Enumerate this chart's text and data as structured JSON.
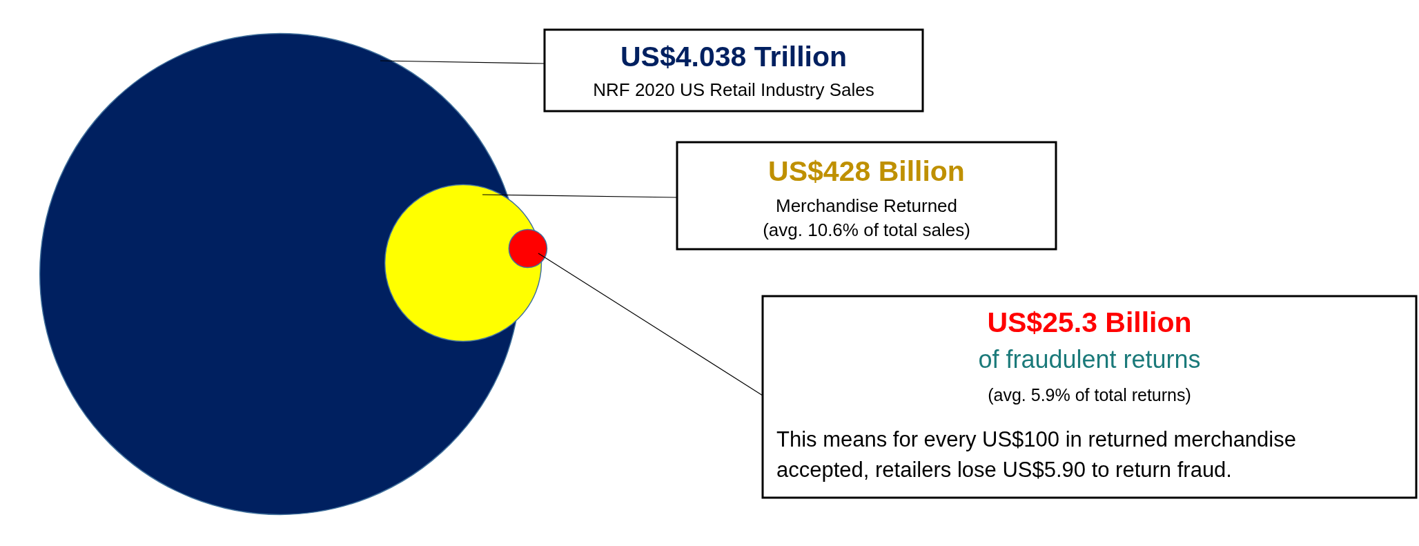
{
  "chart_data": {
    "type": "other",
    "categories": [
      null,
      null,
      null
    ],
    "values": [
      4038,
      428,
      25.3
    ],
    "value_labels": [
      "US$4.038 Trillion",
      "US$428 Billion",
      "US$25.3 Billion"
    ],
    "colors": [
      "#002060",
      "#ffff00",
      "#ff0000"
    ],
    "annotations": [
      "NRF 2020 US Retail Industry Sales",
      "Merchandise Returned",
      "(avg. 10.6% of total sales)",
      "of fraudulent returns",
      "(avg. 5.9% of total returns)",
      "This means for every US$100 in returned merchandise accepted, retailers lose US$5.90 to return fraud."
    ]
  }
}
